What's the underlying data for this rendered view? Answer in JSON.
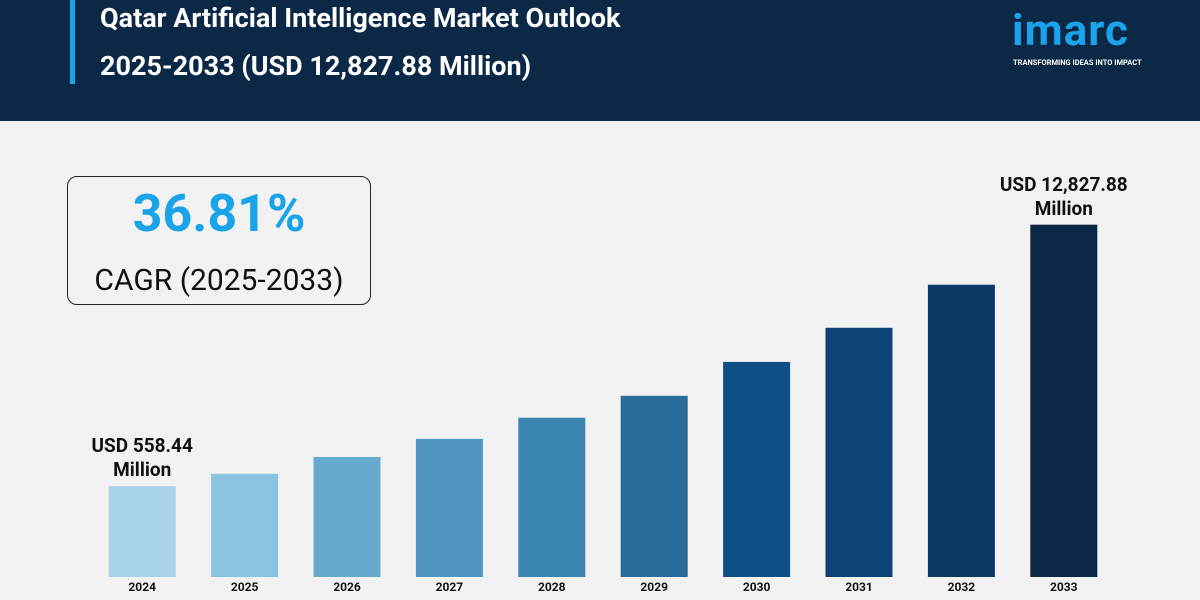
{
  "header": {
    "title_lines": [
      "Qatar Artificial Intelligence Market Outlook",
      "2025-2033 (USD 12,827.88 Million)"
    ],
    "logo": "imarc",
    "tagline": "TRANSFORMING IDEAS INTO IMPACT"
  },
  "cagr": {
    "value": "36.81%",
    "label": "CAGR (2025-2033)"
  },
  "chart_data": {
    "type": "bar",
    "categories": [
      "2024",
      "2025",
      "2026",
      "2027",
      "2028",
      "2029",
      "2030",
      "2031",
      "2032",
      "2033"
    ],
    "values": [
      558.44,
      1140,
      1930,
      2780,
      3770,
      4800,
      6390,
      7990,
      10010,
      12827.88
    ],
    "value_labels": [
      "USD 558.44 Million",
      null,
      null,
      null,
      null,
      null,
      null,
      null,
      null,
      "USD 12,827.88 Million"
    ],
    "colors": [
      "#a9d3ea",
      "#8ac3e0",
      "#66aacf",
      "#4f97c0",
      "#3a85b2",
      "#2a6d9b",
      "#0f4f86",
      "#0c4276",
      "#0b3865",
      "#0a2747"
    ],
    "ylim": [
      -3700,
      13000
    ]
  }
}
